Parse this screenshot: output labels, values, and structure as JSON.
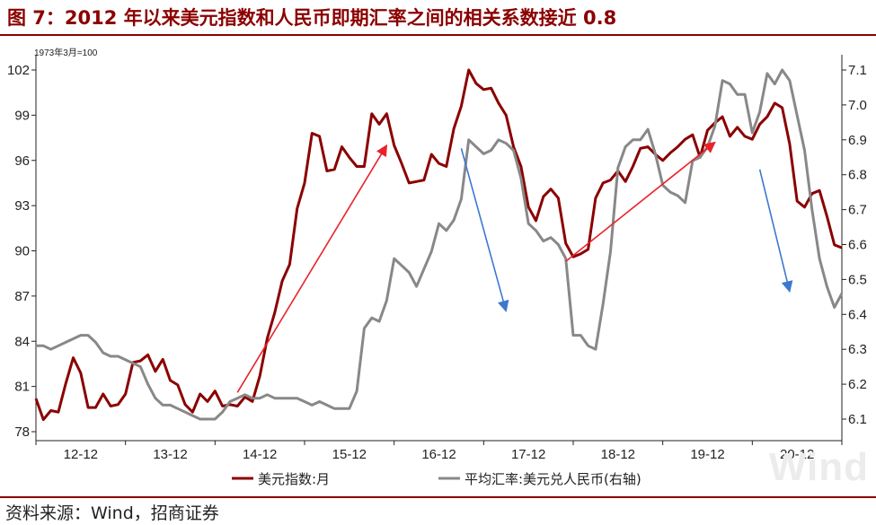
{
  "title": "图 7：2012 年以来美元指数和人民币即期汇率之间的相关系数接近 0.8",
  "source": "资料来源：Wind，招商证券",
  "watermark": "Wind",
  "colors": {
    "title": "#8B0000",
    "dxy": "#8B0000",
    "cny": "#888888",
    "arrow_up": "#e8232a",
    "arrow_down": "#3b78d0"
  },
  "chart_data": {
    "type": "line",
    "unit_label": "1973年3月=100",
    "x_tick_labels": [
      "12-12",
      "13-12",
      "14-12",
      "15-12",
      "16-12",
      "17-12",
      "18-12",
      "19-12",
      "20-12"
    ],
    "x_range": [
      "2012-01",
      "2021-01"
    ],
    "y_left": {
      "range": [
        78,
        102
      ],
      "ticks": [
        78,
        81,
        84,
        87,
        90,
        93,
        96,
        99,
        102
      ]
    },
    "y_right": {
      "range": [
        6.1,
        7.1
      ],
      "ticks": [
        6.1,
        6.2,
        6.3,
        6.4,
        6.5,
        6.6,
        6.7,
        6.8,
        6.9,
        7.0,
        7.1
      ]
    },
    "grid": false,
    "legend_position": "bottom",
    "series": [
      {
        "name": "美元指数:月",
        "axis": "left",
        "color": "#8B0000",
        "x": [
          "2012-01",
          "2012-02",
          "2012-03",
          "2012-04",
          "2012-05",
          "2012-06",
          "2012-07",
          "2012-08",
          "2012-09",
          "2012-10",
          "2012-11",
          "2012-12",
          "2013-01",
          "2013-02",
          "2013-03",
          "2013-04",
          "2013-05",
          "2013-06",
          "2013-07",
          "2013-08",
          "2013-09",
          "2013-10",
          "2013-11",
          "2013-12",
          "2014-01",
          "2014-02",
          "2014-03",
          "2014-04",
          "2014-05",
          "2014-06",
          "2014-07",
          "2014-08",
          "2014-09",
          "2014-10",
          "2014-11",
          "2014-12",
          "2015-01",
          "2015-02",
          "2015-03",
          "2015-04",
          "2015-05",
          "2015-06",
          "2015-07",
          "2015-08",
          "2015-09",
          "2015-10",
          "2015-11",
          "2015-12",
          "2016-01",
          "2016-02",
          "2016-03",
          "2016-04",
          "2016-05",
          "2016-06",
          "2016-07",
          "2016-08",
          "2016-09",
          "2016-10",
          "2016-11",
          "2016-12",
          "2017-01",
          "2017-02",
          "2017-03",
          "2017-04",
          "2017-05",
          "2017-06",
          "2017-07",
          "2017-08",
          "2017-09",
          "2017-10",
          "2017-11",
          "2017-12",
          "2018-01",
          "2018-02",
          "2018-03",
          "2018-04",
          "2018-05",
          "2018-06",
          "2018-07",
          "2018-08",
          "2018-09",
          "2018-10",
          "2018-11",
          "2018-12",
          "2019-01",
          "2019-02",
          "2019-03",
          "2019-04",
          "2019-05",
          "2019-06",
          "2019-07",
          "2019-08",
          "2019-09",
          "2019-10",
          "2019-11",
          "2019-12",
          "2020-01",
          "2020-02",
          "2020-03",
          "2020-04",
          "2020-05",
          "2020-06",
          "2020-07",
          "2020-08",
          "2020-09",
          "2020-10",
          "2020-11",
          "2020-12",
          "2021-01"
        ],
        "values": [
          80.2,
          78.8,
          79.4,
          79.3,
          81.2,
          82.9,
          81.9,
          79.6,
          79.6,
          80.5,
          79.7,
          79.8,
          80.5,
          82.6,
          82.7,
          83.1,
          82.0,
          82.8,
          81.4,
          81.1,
          79.8,
          79.3,
          80.5,
          80.0,
          80.7,
          79.7,
          79.8,
          79.7,
          80.3,
          80.0,
          81.7,
          84.2,
          85.9,
          88.0,
          89.1,
          92.8,
          94.5,
          97.8,
          97.6,
          95.3,
          95.4,
          96.9,
          96.2,
          95.6,
          95.6,
          99.1,
          98.4,
          99.1,
          97.0,
          95.8,
          94.5,
          94.6,
          94.7,
          96.4,
          95.8,
          95.6,
          98.1,
          99.6,
          102.0,
          101.1,
          100.7,
          100.8,
          99.8,
          99.0,
          96.9,
          95.6,
          92.9,
          92.0,
          93.6,
          94.1,
          93.5,
          90.5,
          89.6,
          89.8,
          90.1,
          93.5,
          94.5,
          94.7,
          95.3,
          94.6,
          95.6,
          96.8,
          96.9,
          96.4,
          96.0,
          96.5,
          96.9,
          97.4,
          97.7,
          96.2,
          98.0,
          98.5,
          98.9,
          97.6,
          98.2,
          97.6,
          97.4,
          98.4,
          98.9,
          99.8,
          99.5,
          97.1,
          93.3,
          92.9,
          93.8,
          94.0,
          92.3,
          90.4,
          90.2
        ]
      },
      {
        "name": "平均汇率:美元兑人民币(右轴)",
        "axis": "right",
        "color": "#888888",
        "x": [
          "2012-01",
          "2012-02",
          "2012-03",
          "2012-04",
          "2012-05",
          "2012-06",
          "2012-07",
          "2012-08",
          "2012-09",
          "2012-10",
          "2012-11",
          "2012-12",
          "2013-01",
          "2013-02",
          "2013-03",
          "2013-04",
          "2013-05",
          "2013-06",
          "2013-07",
          "2013-08",
          "2013-09",
          "2013-10",
          "2013-11",
          "2013-12",
          "2014-01",
          "2014-02",
          "2014-03",
          "2014-04",
          "2014-05",
          "2014-06",
          "2014-07",
          "2014-08",
          "2014-09",
          "2014-10",
          "2014-11",
          "2014-12",
          "2015-01",
          "2015-02",
          "2015-03",
          "2015-04",
          "2015-05",
          "2015-06",
          "2015-07",
          "2015-08",
          "2015-09",
          "2015-10",
          "2015-11",
          "2015-12",
          "2016-01",
          "2016-02",
          "2016-03",
          "2016-04",
          "2016-05",
          "2016-06",
          "2016-07",
          "2016-08",
          "2016-09",
          "2016-10",
          "2016-11",
          "2016-12",
          "2017-01",
          "2017-02",
          "2017-03",
          "2017-04",
          "2017-05",
          "2017-06",
          "2017-07",
          "2017-08",
          "2017-09",
          "2017-10",
          "2017-11",
          "2017-12",
          "2018-01",
          "2018-02",
          "2018-03",
          "2018-04",
          "2018-05",
          "2018-06",
          "2018-07",
          "2018-08",
          "2018-09",
          "2018-10",
          "2018-11",
          "2018-12",
          "2019-01",
          "2019-02",
          "2019-03",
          "2019-04",
          "2019-05",
          "2019-06",
          "2019-07",
          "2019-08",
          "2019-09",
          "2019-10",
          "2019-11",
          "2019-12",
          "2020-01",
          "2020-02",
          "2020-03",
          "2020-04",
          "2020-05",
          "2020-06",
          "2020-07",
          "2020-08",
          "2020-09",
          "2020-10",
          "2020-11",
          "2020-12",
          "2021-01"
        ],
        "values": [
          6.31,
          6.31,
          6.3,
          6.31,
          6.32,
          6.33,
          6.34,
          6.34,
          6.32,
          6.29,
          6.28,
          6.28,
          6.27,
          6.26,
          6.25,
          6.2,
          6.16,
          6.14,
          6.14,
          6.13,
          6.12,
          6.11,
          6.1,
          6.1,
          6.1,
          6.12,
          6.15,
          6.16,
          6.17,
          6.16,
          6.16,
          6.17,
          6.16,
          6.16,
          6.16,
          6.16,
          6.15,
          6.14,
          6.15,
          6.14,
          6.13,
          6.13,
          6.13,
          6.18,
          6.36,
          6.39,
          6.38,
          6.44,
          6.56,
          6.54,
          6.52,
          6.48,
          6.53,
          6.58,
          6.66,
          6.64,
          6.67,
          6.73,
          6.9,
          6.88,
          6.86,
          6.87,
          6.9,
          6.89,
          6.87,
          6.79,
          6.66,
          6.64,
          6.61,
          6.62,
          6.6,
          6.56,
          6.34,
          6.34,
          6.31,
          6.3,
          6.43,
          6.58,
          6.82,
          6.88,
          6.9,
          6.9,
          6.93,
          6.86,
          6.77,
          6.75,
          6.74,
          6.72,
          6.84,
          6.85,
          6.88,
          6.94,
          7.07,
          7.06,
          7.03,
          7.03,
          6.92,
          6.98,
          7.09,
          7.06,
          7.1,
          7.07,
          6.97,
          6.87,
          6.7,
          6.56,
          6.48,
          6.42,
          6.46
        ]
      }
    ],
    "annotations": [
      {
        "type": "arrow",
        "color": "#e8232a",
        "from": [
          "2014-04",
          80.6
        ],
        "to": [
          "2015-12",
          97.0
        ]
      },
      {
        "type": "arrow",
        "color": "#3b78d0",
        "from": [
          "2016-10",
          96.8
        ],
        "to": [
          "2017-04",
          86.0
        ]
      },
      {
        "type": "arrow",
        "color": "#e8232a",
        "from": [
          "2017-12",
          89.3
        ],
        "to": [
          "2019-08",
          97.2
        ]
      },
      {
        "type": "arrow",
        "color": "#3b78d0",
        "from": [
          "2020-02",
          95.4
        ],
        "to": [
          "2020-06",
          87.3
        ]
      }
    ]
  }
}
